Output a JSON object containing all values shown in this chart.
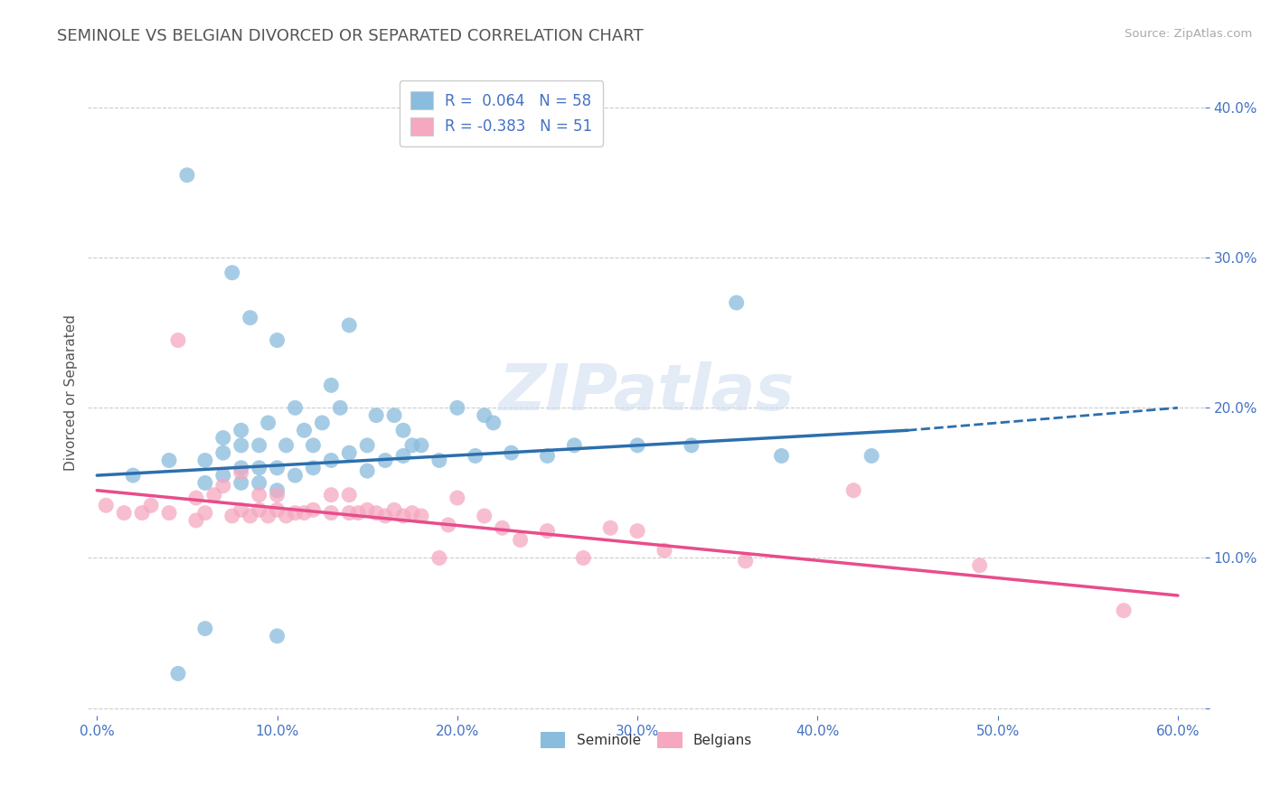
{
  "title": "SEMINOLE VS BELGIAN DIVORCED OR SEPARATED CORRELATION CHART",
  "source": "Source: ZipAtlas.com",
  "ylabel": "Divorced or Separated",
  "xlim": [
    -0.005,
    0.615
  ],
  "ylim": [
    -0.005,
    0.425
  ],
  "xticks": [
    0.0,
    0.1,
    0.2,
    0.3,
    0.4,
    0.5,
    0.6
  ],
  "yticks": [
    0.0,
    0.1,
    0.2,
    0.3,
    0.4
  ],
  "ytick_labels": [
    "",
    "10.0%",
    "20.0%",
    "30.0%",
    "40.0%"
  ],
  "xtick_labels": [
    "0.0%",
    "10.0%",
    "20.0%",
    "30.0%",
    "40.0%",
    "50.0%",
    "60.0%"
  ],
  "blue_R": 0.064,
  "blue_N": 58,
  "pink_R": -0.383,
  "pink_N": 51,
  "blue_color": "#89bcdd",
  "pink_color": "#f5a8c0",
  "blue_line_color": "#2c6fad",
  "pink_line_color": "#e84d8a",
  "axis_color": "#4472c4",
  "watermark": "ZIPatlas",
  "blue_line_x_start": 0.0,
  "blue_line_y_start": 0.155,
  "blue_line_x_solid_end": 0.45,
  "blue_line_y_solid_end": 0.185,
  "blue_line_x_dash_end": 0.6,
  "blue_line_y_dash_end": 0.2,
  "pink_line_x_start": 0.0,
  "pink_line_y_start": 0.145,
  "pink_line_x_end": 0.6,
  "pink_line_y_end": 0.075,
  "blue_scatter_x": [
    0.02,
    0.04,
    0.05,
    0.06,
    0.06,
    0.07,
    0.07,
    0.07,
    0.075,
    0.08,
    0.08,
    0.08,
    0.08,
    0.085,
    0.09,
    0.09,
    0.09,
    0.095,
    0.1,
    0.1,
    0.1,
    0.105,
    0.11,
    0.11,
    0.115,
    0.12,
    0.12,
    0.125,
    0.13,
    0.13,
    0.135,
    0.14,
    0.14,
    0.15,
    0.15,
    0.155,
    0.16,
    0.165,
    0.17,
    0.17,
    0.175,
    0.18,
    0.19,
    0.2,
    0.21,
    0.215,
    0.22,
    0.23,
    0.25,
    0.265,
    0.3,
    0.33,
    0.355,
    0.38,
    0.43,
    0.045,
    0.06,
    0.1
  ],
  "blue_scatter_y": [
    0.155,
    0.165,
    0.355,
    0.15,
    0.165,
    0.155,
    0.17,
    0.18,
    0.29,
    0.15,
    0.16,
    0.175,
    0.185,
    0.26,
    0.15,
    0.16,
    0.175,
    0.19,
    0.145,
    0.16,
    0.245,
    0.175,
    0.155,
    0.2,
    0.185,
    0.16,
    0.175,
    0.19,
    0.165,
    0.215,
    0.2,
    0.17,
    0.255,
    0.158,
    0.175,
    0.195,
    0.165,
    0.195,
    0.168,
    0.185,
    0.175,
    0.175,
    0.165,
    0.2,
    0.168,
    0.195,
    0.19,
    0.17,
    0.168,
    0.175,
    0.175,
    0.175,
    0.27,
    0.168,
    0.168,
    0.023,
    0.053,
    0.048
  ],
  "pink_scatter_x": [
    0.005,
    0.015,
    0.025,
    0.03,
    0.04,
    0.045,
    0.055,
    0.055,
    0.06,
    0.065,
    0.07,
    0.075,
    0.08,
    0.08,
    0.085,
    0.09,
    0.09,
    0.095,
    0.1,
    0.1,
    0.105,
    0.11,
    0.115,
    0.12,
    0.13,
    0.13,
    0.14,
    0.14,
    0.145,
    0.15,
    0.155,
    0.16,
    0.165,
    0.17,
    0.175,
    0.18,
    0.19,
    0.195,
    0.2,
    0.215,
    0.225,
    0.235,
    0.25,
    0.27,
    0.285,
    0.3,
    0.315,
    0.36,
    0.42,
    0.49,
    0.57
  ],
  "pink_scatter_y": [
    0.135,
    0.13,
    0.13,
    0.135,
    0.13,
    0.245,
    0.125,
    0.14,
    0.13,
    0.142,
    0.148,
    0.128,
    0.132,
    0.157,
    0.128,
    0.132,
    0.142,
    0.128,
    0.132,
    0.142,
    0.128,
    0.13,
    0.13,
    0.132,
    0.13,
    0.142,
    0.13,
    0.142,
    0.13,
    0.132,
    0.13,
    0.128,
    0.132,
    0.128,
    0.13,
    0.128,
    0.1,
    0.122,
    0.14,
    0.128,
    0.12,
    0.112,
    0.118,
    0.1,
    0.12,
    0.118,
    0.105,
    0.098,
    0.145,
    0.095,
    0.065
  ]
}
